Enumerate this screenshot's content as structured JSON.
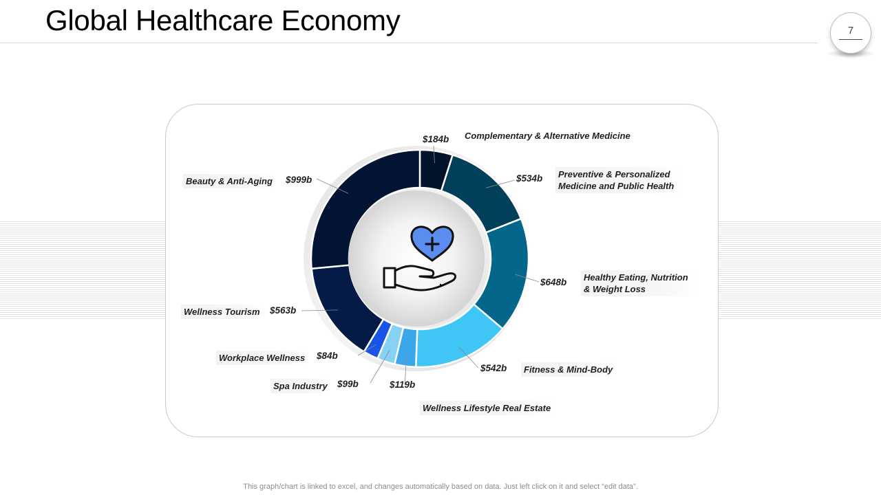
{
  "page": {
    "title": "Global Healthcare Economy",
    "page_number": "7",
    "footnote": "This graph/chart is linked to excel,  and changes automatically based on data. Just left click on it and select “edit data”."
  },
  "center_icon": "heart-in-hand-icon",
  "chart_data": {
    "type": "pie",
    "variant": "donut",
    "title": "",
    "unit": "$b",
    "categories": [
      "Complementary & Alternative Medicine",
      "Preventive & Personalized Medicine and Public Health",
      "Healthy Eating, Nutrition & Weight Loss",
      "Fitness & Mind-Body",
      "Wellness Lifestyle Real Estate",
      "Spa Industry",
      "Workplace Wellness",
      "Wellness Tourism",
      "Beauty & Anti-Aging"
    ],
    "values": [
      184,
      534,
      648,
      542,
      119,
      99,
      84,
      563,
      999
    ],
    "value_labels": [
      "$184b",
      "$534b",
      "$648b",
      "$542b",
      "$119b",
      "$99b",
      "$84b",
      "$563b",
      "$999b"
    ],
    "colors": [
      "#03132c",
      "#023f5a",
      "#03668a",
      "#3fc6f5",
      "#3aa7ea",
      "#86d2f4",
      "#1855e6",
      "#031b46",
      "#021333"
    ],
    "legend": "none"
  }
}
